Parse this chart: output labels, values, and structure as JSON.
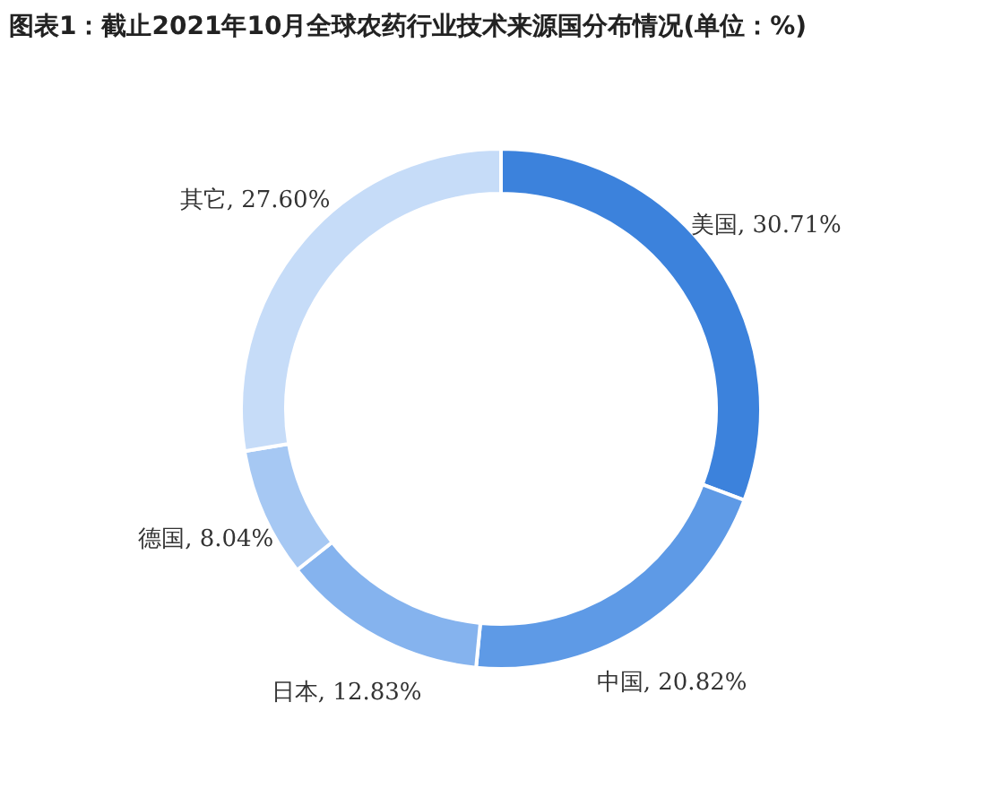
{
  "chart_data": {
    "type": "donut",
    "title": "图表1：截止2021年10月全球农药行业技术来源国分布情况(单位：%)",
    "categories": [
      "美国",
      "中国",
      "日本",
      "德国",
      "其它"
    ],
    "values": [
      30.71,
      20.82,
      12.83,
      8.04,
      27.6
    ],
    "value_labels": [
      "30.71%",
      "20.82%",
      "12.83%",
      "8.04%",
      "27.60%"
    ],
    "colors": [
      "#3c82dc",
      "#5e9ae6",
      "#85b3ee",
      "#a6c8f3",
      "#c6dcf8"
    ]
  }
}
